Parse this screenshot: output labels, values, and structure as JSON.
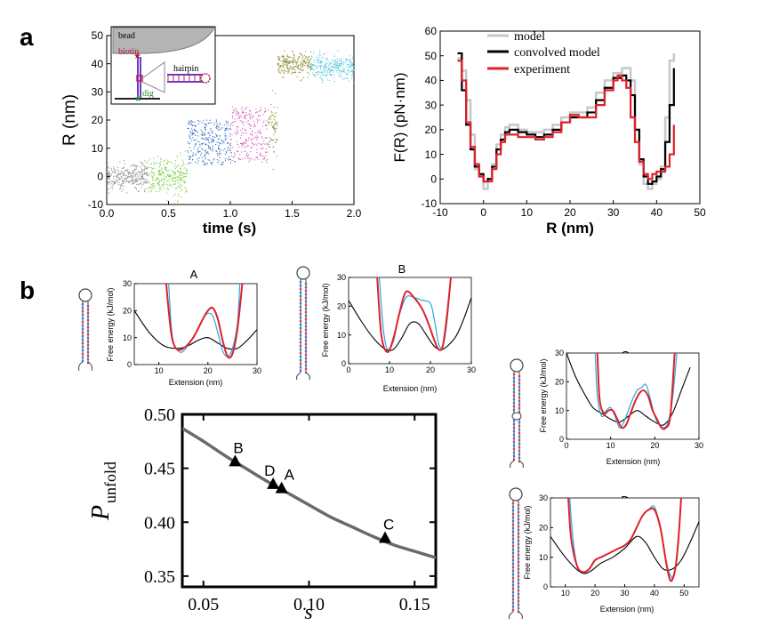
{
  "panel_labels": {
    "a": "a",
    "b": "b"
  },
  "inset": {
    "bead": "bead",
    "biotin": "biotin",
    "hairpin": "hairpin",
    "dig": "dig"
  },
  "colors": {
    "gray": "#8c8c8c",
    "green": "#7ccf45",
    "blue": "#2a6bc0",
    "magenta": "#cf56b8",
    "olive": "#8c8a32",
    "cyan": "#5cc8dc",
    "red": "#e0202a",
    "lightblue": "#2aa8e0",
    "lightgray": "#c8c8c8",
    "black": "#000000",
    "darkgray": "#6a6a6a"
  },
  "chart_data": [
    {
      "id": "trace",
      "type": "scatter",
      "xlabel": "time (s)",
      "ylabel": "R (nm)",
      "xlim": [
        0,
        2
      ],
      "ylim": [
        -10,
        50
      ],
      "xticks": [
        "0.0",
        "0.5",
        "1.0",
        "1.5",
        "2.0"
      ],
      "yticks": [
        "-10",
        "0",
        "10",
        "20",
        "30",
        "40",
        "50"
      ],
      "segments": [
        {
          "t0": 0.0,
          "t1": 0.33,
          "mean": 0,
          "spread": 3,
          "color": "gray"
        },
        {
          "t0": 0.33,
          "t1": 0.65,
          "mean": 0,
          "spread": 5,
          "color": "green"
        },
        {
          "t0": 0.65,
          "t1": 1.0,
          "mean": 9,
          "spread": 8,
          "color": "blue"
        },
        {
          "t0": 1.0,
          "t1": 1.3,
          "mean": 11,
          "spread": 10,
          "color": "magenta"
        },
        {
          "t0": 1.3,
          "t1": 1.38,
          "mean": 18,
          "spread": 8,
          "color": "olive"
        },
        {
          "t0": 1.38,
          "t1": 1.43,
          "mean": 40,
          "spread": 3,
          "color": "olive"
        },
        {
          "t0": 1.43,
          "t1": 1.65,
          "mean": 40,
          "spread": 3,
          "color": "olive"
        },
        {
          "t0": 1.65,
          "t1": 2.0,
          "mean": 39,
          "spread": 3,
          "color": "cyan"
        }
      ]
    },
    {
      "id": "energy",
      "type": "line",
      "xlabel": "R (nm)",
      "ylabel": "F(R) (pN·nm)",
      "xlim": [
        -10,
        50
      ],
      "ylim": [
        -10,
        60
      ],
      "xticks": [
        "-10",
        "0",
        "10",
        "20",
        "30",
        "40",
        "50"
      ],
      "yticks": [
        "-10",
        "0",
        "10",
        "20",
        "30",
        "40",
        "50",
        "60"
      ],
      "legend": [
        "model",
        "convolved model",
        "experiment"
      ],
      "series": [
        {
          "name": "model",
          "color": "lightgray",
          "x": [
            -6,
            -5,
            -4,
            -3,
            -2,
            -1,
            0,
            1,
            2,
            3,
            4,
            5,
            6,
            8,
            10,
            12,
            14,
            16,
            18,
            20,
            22,
            24,
            26,
            28,
            30,
            32,
            33,
            34,
            35,
            36,
            37,
            38,
            39,
            40,
            41,
            42,
            43,
            44
          ],
          "y": [
            49,
            44,
            32,
            18,
            4,
            1,
            -4,
            0,
            6,
            14,
            18,
            21,
            22,
            20,
            19,
            19,
            20,
            22,
            25,
            27,
            27,
            29,
            35,
            40,
            43,
            45,
            45,
            40,
            20,
            6,
            -2,
            -4,
            -2,
            0,
            5,
            25,
            48,
            51
          ]
        },
        {
          "name": "convolved model",
          "color": "black",
          "x": [
            -6,
            -5,
            -4,
            -3,
            -2,
            -1,
            0,
            1,
            2,
            3,
            4,
            5,
            6,
            8,
            10,
            12,
            14,
            16,
            18,
            20,
            22,
            24,
            26,
            28,
            30,
            32,
            33,
            34,
            35,
            36,
            37,
            38,
            39,
            40,
            41,
            42,
            43,
            44
          ],
          "y": [
            51,
            36,
            22,
            12,
            5,
            2,
            -1,
            0,
            5,
            12,
            16,
            19,
            20,
            19,
            18,
            17,
            18,
            20,
            23,
            25,
            25,
            27,
            32,
            37,
            41,
            42,
            40,
            34,
            20,
            8,
            1,
            -2,
            -1,
            1,
            4,
            15,
            30,
            45
          ]
        },
        {
          "name": "experiment",
          "color": "red",
          "x": [
            -6,
            -5,
            -4,
            -3,
            -2,
            -1,
            0,
            1,
            2,
            3,
            4,
            5,
            6,
            8,
            10,
            12,
            14,
            16,
            18,
            20,
            22,
            24,
            26,
            28,
            30,
            31,
            32,
            33,
            34,
            35,
            36,
            37,
            38,
            39,
            40,
            41,
            42,
            43,
            44
          ],
          "y": [
            48,
            40,
            23,
            13,
            6,
            1,
            -1,
            -1,
            4,
            10,
            15,
            18,
            18,
            17,
            17,
            16,
            17,
            19,
            23,
            26,
            25,
            25,
            30,
            36,
            40,
            42,
            40,
            37,
            25,
            15,
            7,
            2,
            0,
            2,
            3,
            3,
            5,
            10,
            22
          ]
        }
      ]
    },
    {
      "id": "A",
      "type": "line",
      "label": "A",
      "xlabel": "Extension (nm)",
      "ylabel": "Free energy (kJ/mol)",
      "xlim": [
        5,
        30
      ],
      "ylim": [
        0,
        30
      ],
      "xticks": [
        "10",
        "20",
        "30"
      ],
      "yticks": [
        "0",
        "10",
        "20",
        "30"
      ],
      "series": [
        {
          "name": "black",
          "color": "black",
          "x": [
            5,
            8,
            11,
            14,
            16,
            18,
            20,
            22,
            24,
            26,
            28,
            30
          ],
          "y": [
            20,
            12,
            7,
            6,
            7,
            9,
            10,
            8,
            6,
            6,
            9,
            13
          ]
        },
        {
          "name": "blue",
          "color": "lightblue",
          "x": [
            12,
            12.5,
            13,
            14,
            15,
            17,
            19,
            20,
            21,
            22,
            23,
            24,
            25,
            26,
            26.5
          ],
          "y": [
            30,
            15,
            8,
            5,
            5,
            10,
            17,
            19,
            18,
            12,
            5,
            3,
            6,
            15,
            30
          ]
        },
        {
          "name": "red",
          "color": "red",
          "x": [
            11.5,
            12.5,
            13.5,
            15,
            17,
            19,
            20,
            21,
            22,
            23,
            24,
            25,
            26,
            27
          ],
          "y": [
            30,
            12,
            6,
            6,
            10,
            17,
            20,
            21,
            17,
            9,
            3,
            4,
            13,
            30
          ]
        }
      ]
    },
    {
      "id": "B",
      "type": "line",
      "label": "B",
      "xlabel": "Extension (nm)",
      "ylabel": "Free energy (kJ/mol)",
      "xlim": [
        0,
        30
      ],
      "ylim": [
        0,
        30
      ],
      "xticks": [
        "0",
        "10",
        "20",
        "30"
      ],
      "yticks": [
        "0",
        "10",
        "20",
        "30"
      ],
      "series": [
        {
          "name": "black",
          "color": "black",
          "x": [
            0,
            3,
            6,
            9,
            11,
            13,
            15,
            17,
            19,
            21,
            23,
            26,
            28,
            30
          ],
          "y": [
            22,
            15,
            9,
            5,
            5,
            9,
            14,
            14,
            10,
            6,
            5,
            9,
            15,
            23
          ]
        },
        {
          "name": "blue",
          "color": "lightblue",
          "x": [
            7.5,
            8.5,
            9.5,
            11,
            12,
            14,
            16,
            18,
            20,
            21,
            22,
            23,
            24,
            25
          ],
          "y": [
            30,
            12,
            5,
            8,
            15,
            23,
            23,
            22,
            21,
            15,
            7,
            6,
            14,
            30
          ]
        },
        {
          "name": "red",
          "color": "red",
          "x": [
            7,
            8,
            9.5,
            11,
            12.5,
            14,
            16,
            18,
            19.5,
            21,
            22,
            23,
            24,
            25
          ],
          "y": [
            30,
            10,
            4,
            9,
            18,
            25,
            23,
            19,
            14,
            8,
            5,
            6,
            16,
            30
          ]
        }
      ]
    },
    {
      "id": "C",
      "type": "line",
      "label": "C",
      "xlabel": "Extension (nm)",
      "ylabel": "Free energy (kJ/mol)",
      "xlim": [
        0,
        30
      ],
      "ylim": [
        0,
        30
      ],
      "xticks": [
        "0",
        "10",
        "20",
        "30"
      ],
      "yticks": [
        "0",
        "10",
        "20",
        "30"
      ],
      "series": [
        {
          "name": "black",
          "color": "black",
          "x": [
            0,
            2,
            4,
            6,
            8,
            10,
            12,
            14,
            16,
            18,
            20,
            22,
            24,
            26,
            28
          ],
          "y": [
            30,
            22,
            16,
            11,
            9,
            7,
            6,
            8,
            10,
            8,
            6,
            5,
            9,
            17,
            25
          ]
        },
        {
          "name": "blue",
          "color": "lightblue",
          "x": [
            6.5,
            7,
            8,
            9,
            10,
            11,
            12,
            13,
            14,
            15,
            16,
            17,
            18,
            19,
            20,
            21,
            22,
            23,
            24,
            25
          ],
          "y": [
            30,
            15,
            8,
            10,
            11,
            8,
            4,
            6,
            10,
            14,
            17,
            18,
            19,
            14,
            8,
            5,
            4,
            6,
            14,
            30
          ]
        },
        {
          "name": "red",
          "color": "red",
          "x": [
            7,
            7.5,
            8.5,
            9.5,
            10.5,
            11.5,
            12.5,
            13.5,
            14.5,
            15.5,
            16.5,
            17.5,
            18.5,
            19.5,
            20.5,
            21.5,
            22.5,
            23.5,
            24.5
          ],
          "y": [
            30,
            14,
            9,
            10,
            10,
            7,
            4,
            5,
            9,
            13,
            16,
            17,
            15,
            10,
            7,
            4,
            4,
            8,
            30
          ]
        }
      ]
    },
    {
      "id": "D",
      "type": "line",
      "label": "D",
      "xlabel": "Extension (nm)",
      "ylabel": "Free energy (kJ/mol)",
      "xlim": [
        5,
        55
      ],
      "ylim": [
        0,
        30
      ],
      "xticks": [
        "10",
        "20",
        "30",
        "40",
        "50"
      ],
      "yticks": [
        "0",
        "10",
        "20",
        "30"
      ],
      "series": [
        {
          "name": "black",
          "color": "black",
          "x": [
            5,
            10,
            15,
            18,
            22,
            26,
            30,
            34,
            37,
            40,
            43,
            46,
            49,
            52,
            55
          ],
          "y": [
            17,
            10,
            5,
            5,
            8,
            10,
            13,
            17,
            15,
            10,
            6,
            6,
            9,
            15,
            22
          ]
        },
        {
          "name": "blue",
          "color": "lightblue",
          "x": [
            11.5,
            12.5,
            14,
            16,
            18,
            20,
            22,
            24,
            26,
            28,
            30,
            32,
            34,
            36,
            38,
            40,
            42,
            44,
            46,
            47,
            48,
            49
          ],
          "y": [
            30,
            17,
            7,
            5,
            6,
            9,
            10,
            11,
            12,
            13,
            14,
            16,
            20,
            24,
            26,
            27,
            20,
            8,
            3,
            6,
            15,
            30
          ]
        },
        {
          "name": "red",
          "color": "red",
          "x": [
            11,
            12,
            14,
            16,
            18,
            20,
            22,
            24,
            26,
            28,
            30,
            32,
            34,
            36,
            38,
            40,
            42,
            44,
            45.5,
            47,
            48,
            49
          ],
          "y": [
            30,
            16,
            7,
            5,
            6,
            9,
            10,
            11,
            12,
            13,
            14,
            16,
            20,
            24,
            26,
            26,
            20,
            8,
            2,
            6,
            15,
            30
          ]
        }
      ]
    },
    {
      "id": "punfold",
      "type": "scatter",
      "xlabel": "s",
      "ylabel": "P_unfold",
      "ylabel_main": "P",
      "ylabel_sub": "unfold",
      "xlim": [
        0.04,
        0.16
      ],
      "ylim": [
        0.34,
        0.5
      ],
      "xticks": [
        "0.05",
        "0.10",
        "0.15"
      ],
      "yticks": [
        "0.35",
        "0.40",
        "0.45",
        "0.50"
      ],
      "curve": {
        "x": [
          0.04,
          0.05,
          0.06,
          0.07,
          0.08,
          0.09,
          0.1,
          0.11,
          0.12,
          0.13,
          0.14,
          0.15,
          0.16
        ],
        "y": [
          0.487,
          0.475,
          0.462,
          0.45,
          0.438,
          0.427,
          0.416,
          0.405,
          0.396,
          0.387,
          0.379,
          0.373,
          0.367
        ]
      },
      "points": [
        {
          "label": "B",
          "x": 0.065,
          "y": 0.456
        },
        {
          "label": "D",
          "x": 0.083,
          "y": 0.435
        },
        {
          "label": "A",
          "x": 0.087,
          "y": 0.431
        },
        {
          "label": "C",
          "x": 0.136,
          "y": 0.385
        }
      ]
    }
  ]
}
